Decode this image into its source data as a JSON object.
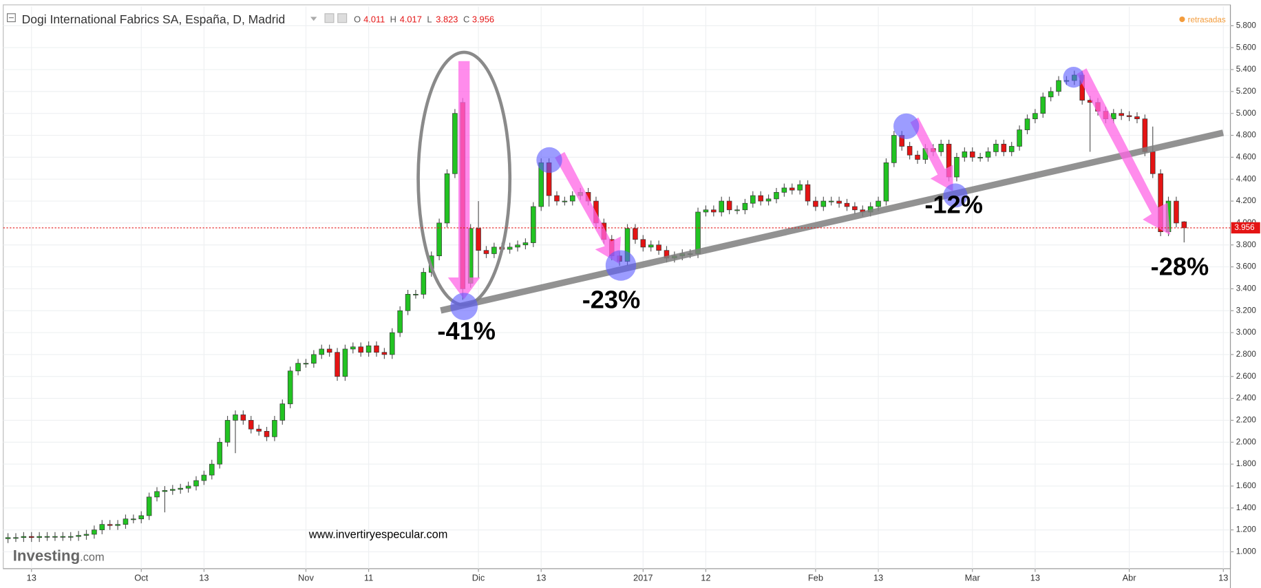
{
  "chart_data": {
    "type": "candlestick",
    "title": "Dogi International Fabrics SA, España, D, Madrid",
    "ohlc_letters": [
      "O",
      "H",
      "L",
      "C"
    ],
    "status": "retrasadas",
    "watermark": "www.invertiryespecular.com",
    "logo": {
      "name": "Investing",
      "suffix": ".com"
    },
    "annotations": [
      "-41%",
      "-23%",
      "-12%",
      "-28%"
    ],
    "up_color": "#22c322",
    "down_color": "#e41414",
    "last_color": "#e41414",
    "grid": true,
    "xlim": [
      -0.6,
      155.9
    ],
    "xticks": [
      {
        "value": 3,
        "label": "13"
      },
      {
        "value": 17,
        "label": "Oct"
      },
      {
        "value": 25,
        "label": "13"
      },
      {
        "value": 38,
        "label": "Nov"
      },
      {
        "value": 46,
        "label": "11"
      },
      {
        "value": 60,
        "label": "Dic"
      },
      {
        "value": 68,
        "label": "13"
      },
      {
        "value": 81,
        "label": "2017"
      },
      {
        "value": 89,
        "label": "12"
      },
      {
        "value": 103,
        "label": "Feb"
      },
      {
        "value": 111,
        "label": "13"
      },
      {
        "value": 123,
        "label": "Mar"
      },
      {
        "value": 131,
        "label": "13"
      },
      {
        "value": 143,
        "label": "Abr"
      },
      {
        "value": 155,
        "label": "13"
      }
    ],
    "ylim": [
      0.846,
      5.976
    ],
    "yticks": [
      {
        "value": 1,
        "label": "1.000"
      },
      {
        "value": 1.2,
        "label": "1.200"
      },
      {
        "value": 1.4,
        "label": "1.400"
      },
      {
        "value": 1.6,
        "label": "1.600"
      },
      {
        "value": 1.8,
        "label": "1.800"
      },
      {
        "value": 2,
        "label": "2.000"
      },
      {
        "value": 2.2,
        "label": "2.200"
      },
      {
        "value": 2.4,
        "label": "2.400"
      },
      {
        "value": 2.6,
        "label": "2.600"
      },
      {
        "value": 2.8,
        "label": "2.800"
      },
      {
        "value": 3,
        "label": "3.000"
      },
      {
        "value": 3.2,
        "label": "3.200"
      },
      {
        "value": 3.4,
        "label": "3.400"
      },
      {
        "value": 3.6,
        "label": "3.600"
      },
      {
        "value": 3.8,
        "label": "3.800"
      },
      {
        "value": 4,
        "label": "4.000"
      },
      {
        "value": 4.2,
        "label": "4.200"
      },
      {
        "value": 4.4,
        "label": "4.400"
      },
      {
        "value": 4.6,
        "label": "4.600"
      },
      {
        "value": 4.8,
        "label": "4.800"
      },
      {
        "value": 5,
        "label": "5.000"
      },
      {
        "value": 5.2,
        "label": "5.200"
      },
      {
        "value": 5.4,
        "label": "5.400"
      },
      {
        "value": 5.6,
        "label": "5.600"
      },
      {
        "value": 5.8,
        "label": "5.800"
      }
    ],
    "open": [
      1.12,
      1.13,
      1.13,
      1.14,
      1.13,
      1.14,
      1.14,
      1.14,
      1.14,
      1.14,
      1.15,
      1.16,
      1.2,
      1.25,
      1.24,
      1.25,
      1.3,
      1.3,
      1.33,
      1.5,
      1.55,
      1.56,
      1.57,
      1.58,
      1.6,
      1.65,
      1.7,
      1.8,
      2.0,
      2.2,
      2.25,
      2.2,
      2.12,
      2.1,
      2.05,
      2.2,
      2.35,
      2.65,
      2.72,
      2.72,
      2.8,
      2.85,
      2.82,
      2.6,
      2.85,
      2.87,
      2.82,
      2.88,
      2.82,
      2.8,
      3.0,
      3.2,
      3.35,
      3.35,
      3.55,
      3.7,
      4.0,
      4.45,
      5.1,
      3.45,
      3.95,
      3.75,
      3.72,
      3.78,
      3.76,
      3.78,
      3.8,
      3.82,
      4.15,
      4.55,
      4.25,
      4.2,
      4.2,
      4.25,
      4.28,
      4.2,
      4.0,
      3.85,
      3.7,
      3.65,
      3.95,
      3.85,
      3.78,
      3.8,
      3.75,
      3.68,
      3.7,
      3.72,
      3.72,
      4.1,
      4.12,
      4.1,
      4.2,
      4.12,
      4.12,
      4.18,
      4.25,
      4.2,
      4.22,
      4.28,
      4.32,
      4.3,
      4.35,
      4.2,
      4.15,
      4.2,
      4.2,
      4.18,
      4.15,
      4.12,
      4.1,
      4.15,
      4.2,
      4.55,
      4.8,
      4.7,
      4.62,
      4.58,
      4.68,
      4.65,
      4.72,
      4.42,
      4.6,
      4.65,
      4.6,
      4.6,
      4.65,
      4.72,
      4.65,
      4.7,
      4.85,
      4.95,
      5.0,
      5.15,
      5.2,
      5.3,
      5.3,
      5.35,
      5.12,
      5.1,
      5.02,
      4.95,
      5.0,
      4.98,
      4.97,
      4.95,
      4.65,
      4.45,
      3.92,
      4.2,
      4.011
    ],
    "high": [
      1.17,
      1.17,
      1.18,
      1.18,
      1.18,
      1.18,
      1.18,
      1.18,
      1.18,
      1.19,
      1.2,
      1.24,
      1.29,
      1.29,
      1.29,
      1.34,
      1.34,
      1.37,
      1.54,
      1.59,
      1.6,
      1.61,
      1.62,
      1.64,
      1.69,
      1.74,
      1.84,
      2.04,
      2.24,
      2.29,
      2.29,
      2.24,
      2.16,
      2.14,
      2.24,
      2.39,
      2.69,
      2.76,
      2.76,
      2.84,
      2.89,
      2.89,
      2.86,
      2.89,
      2.91,
      2.91,
      2.92,
      2.92,
      2.86,
      3.04,
      3.24,
      3.39,
      3.39,
      3.59,
      3.74,
      4.04,
      4.49,
      5.04,
      5.14,
      3.99,
      4.2,
      3.79,
      3.82,
      3.82,
      3.82,
      3.84,
      3.86,
      4.19,
      4.59,
      4.59,
      4.29,
      4.24,
      4.29,
      4.32,
      4.32,
      4.24,
      4.04,
      3.89,
      3.74,
      3.99,
      3.99,
      3.89,
      3.84,
      3.84,
      3.79,
      3.74,
      3.76,
      3.76,
      4.14,
      4.16,
      4.16,
      4.24,
      4.24,
      4.16,
      4.22,
      4.29,
      4.29,
      4.26,
      4.32,
      4.36,
      4.36,
      4.39,
      4.39,
      4.24,
      4.24,
      4.24,
      4.24,
      4.22,
      4.19,
      4.16,
      4.19,
      4.24,
      4.59,
      4.84,
      4.84,
      4.74,
      4.66,
      4.72,
      4.72,
      4.76,
      4.76,
      4.64,
      4.69,
      4.69,
      4.64,
      4.69,
      4.76,
      4.76,
      4.74,
      4.89,
      4.99,
      5.04,
      5.19,
      5.24,
      5.34,
      5.34,
      5.39,
      5.39,
      5.16,
      5.14,
      5.06,
      5.04,
      5.04,
      5.02,
      5.01,
      4.99,
      4.88,
      4.49,
      4.24,
      4.24,
      4.017
    ],
    "low": [
      1.08,
      1.09,
      1.09,
      1.09,
      1.09,
      1.1,
      1.1,
      1.1,
      1.1,
      1.1,
      1.11,
      1.12,
      1.16,
      1.2,
      1.2,
      1.21,
      1.26,
      1.26,
      1.29,
      1.46,
      1.36,
      1.52,
      1.53,
      1.54,
      1.56,
      1.61,
      1.66,
      1.76,
      1.96,
      1.9,
      2.16,
      2.08,
      2.06,
      2.01,
      2.01,
      2.16,
      2.31,
      2.61,
      2.68,
      2.68,
      2.76,
      2.78,
      2.56,
      2.56,
      2.81,
      2.78,
      2.78,
      2.78,
      2.76,
      2.76,
      2.96,
      3.16,
      3.31,
      3.31,
      3.51,
      3.66,
      3.96,
      4.41,
      3.3,
      3.41,
      3.5,
      3.68,
      3.68,
      3.72,
      3.72,
      3.74,
      3.76,
      3.78,
      4.11,
      4.15,
      4.16,
      4.16,
      4.16,
      4.21,
      4.16,
      3.96,
      3.81,
      3.66,
      3.61,
      3.61,
      3.81,
      3.74,
      3.74,
      3.71,
      3.64,
      3.64,
      3.66,
      3.68,
      3.68,
      4.06,
      4.06,
      4.06,
      4.08,
      4.08,
      4.08,
      4.14,
      4.16,
      4.16,
      4.18,
      4.24,
      4.26,
      4.26,
      4.16,
      4.11,
      4.11,
      4.16,
      4.14,
      4.11,
      4.08,
      4.06,
      4.06,
      4.11,
      4.16,
      4.51,
      4.66,
      4.58,
      4.54,
      4.54,
      4.61,
      4.61,
      4.38,
      4.38,
      4.56,
      4.56,
      4.56,
      4.56,
      4.61,
      4.61,
      4.61,
      4.66,
      4.81,
      4.91,
      4.96,
      5.11,
      5.16,
      5.26,
      5.26,
      5.08,
      4.65,
      4.98,
      4.91,
      4.91,
      4.94,
      4.93,
      4.91,
      4.61,
      4.41,
      3.88,
      3.88,
      3.96,
      3.823
    ],
    "close": [
      1.13,
      1.13,
      1.14,
      1.13,
      1.14,
      1.14,
      1.14,
      1.14,
      1.14,
      1.15,
      1.16,
      1.2,
      1.25,
      1.24,
      1.25,
      1.3,
      1.3,
      1.33,
      1.5,
      1.55,
      1.56,
      1.57,
      1.58,
      1.6,
      1.65,
      1.7,
      1.8,
      2.0,
      2.2,
      2.25,
      2.2,
      2.12,
      2.1,
      2.05,
      2.2,
      2.35,
      2.65,
      2.72,
      2.72,
      2.8,
      2.85,
      2.82,
      2.6,
      2.85,
      2.87,
      2.82,
      2.88,
      2.82,
      2.8,
      3.0,
      3.2,
      3.35,
      3.35,
      3.55,
      3.7,
      4.0,
      4.45,
      5.0,
      3.4,
      3.95,
      3.75,
      3.72,
      3.78,
      3.76,
      3.78,
      3.8,
      3.82,
      4.15,
      4.55,
      4.25,
      4.2,
      4.2,
      4.25,
      4.28,
      4.2,
      4.0,
      3.85,
      3.7,
      3.65,
      3.95,
      3.85,
      3.78,
      3.8,
      3.75,
      3.68,
      3.7,
      3.72,
      3.72,
      4.1,
      4.12,
      4.1,
      4.2,
      4.12,
      4.12,
      4.18,
      4.25,
      4.2,
      4.22,
      4.28,
      4.32,
      4.3,
      4.35,
      4.2,
      4.15,
      4.2,
      4.2,
      4.18,
      4.15,
      4.12,
      4.1,
      4.15,
      4.2,
      4.55,
      4.8,
      4.7,
      4.62,
      4.58,
      4.68,
      4.65,
      4.72,
      4.42,
      4.6,
      4.65,
      4.6,
      4.6,
      4.65,
      4.72,
      4.65,
      4.7,
      4.85,
      4.95,
      5.0,
      5.15,
      5.2,
      5.3,
      5.3,
      5.35,
      5.12,
      5.1,
      5.02,
      4.95,
      5.0,
      4.98,
      4.97,
      4.95,
      4.65,
      4.45,
      3.92,
      4.2,
      4.0,
      3.956
    ]
  }
}
